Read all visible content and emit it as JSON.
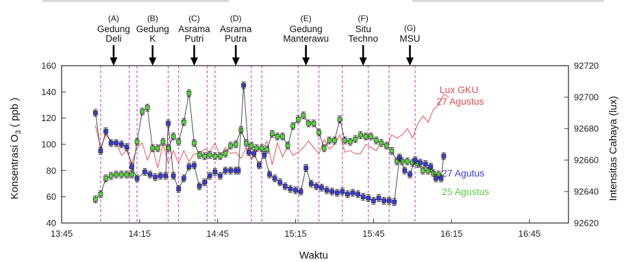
{
  "chart_data": {
    "type": "line",
    "title": "",
    "xlabel": "Waktu",
    "ylabel_left_main": "Konsentrasi O",
    "ylabel_left_sub": "3",
    "ylabel_left_unit": " ( ppb )",
    "ylabel_right": "Intensitas Cahaya (lux)",
    "x_tick_labels": [
      "13:45",
      "14:15",
      "14:45",
      "15:15",
      "15:45",
      "16:15",
      "16:45"
    ],
    "xlim_minutes": [
      0,
      195
    ],
    "x_tick_minutes": [
      0,
      30,
      60,
      90,
      120,
      150,
      180
    ],
    "ylim_left": [
      40,
      160
    ],
    "y_ticks_left": [
      40,
      60,
      80,
      100,
      120,
      140,
      160
    ],
    "ylim_right": [
      92620,
      92720
    ],
    "y_ticks_right": [
      92620,
      92640,
      92660,
      92680,
      92700,
      92720
    ],
    "grid": false,
    "locations": [
      {
        "letter": "(A)",
        "lines": [
          "Gedung",
          "Deli"
        ],
        "minute": 20
      },
      {
        "letter": "(B)",
        "lines": [
          "Gedung",
          "K"
        ],
        "minute": 35
      },
      {
        "letter": "(C)",
        "lines": [
          "Asrama",
          "Putri"
        ],
        "minute": 51
      },
      {
        "letter": "(D)",
        "lines": [
          "Asrama",
          "Putra"
        ],
        "minute": 67
      },
      {
        "letter": "(E)",
        "lines": [
          "Gedung",
          "Manterawu"
        ],
        "minute": 94
      },
      {
        "letter": "(F)",
        "lines": [
          "Situ",
          "Techno"
        ],
        "minute": 116
      },
      {
        "letter": "(G)",
        "lines": [
          "MSU"
        ],
        "minute": 134
      }
    ],
    "segment_boundaries_minutes": [
      15,
      26,
      29,
      41,
      45,
      56,
      59,
      73,
      77,
      91,
      99,
      108,
      118,
      126,
      136
    ],
    "series": [
      {
        "name": "27 Agutus",
        "axis": "left",
        "color": "#3a3ad8",
        "points": [
          [
            13,
            124
          ],
          [
            15,
            95
          ],
          [
            17,
            110
          ],
          [
            19,
            101
          ],
          [
            21,
            101
          ],
          [
            23,
            100
          ],
          [
            25,
            98
          ],
          [
            27,
            83
          ],
          [
            29,
            74
          ],
          [
            32,
            79
          ],
          [
            34,
            77
          ],
          [
            36,
            75
          ],
          [
            38,
            76
          ],
          [
            40,
            76
          ],
          [
            41,
            116
          ],
          [
            43,
            76
          ],
          [
            45,
            66
          ],
          [
            47,
            74
          ],
          [
            49,
            83
          ],
          [
            51,
            84
          ],
          [
            53,
            68
          ],
          [
            55,
            71
          ],
          [
            57,
            76
          ],
          [
            59,
            79
          ],
          [
            61,
            76
          ],
          [
            63,
            80
          ],
          [
            65,
            80
          ],
          [
            67,
            80
          ],
          [
            68,
            80
          ],
          [
            70,
            145
          ],
          [
            72,
            94
          ],
          [
            74,
            93
          ],
          [
            76,
            84
          ],
          [
            78,
            92
          ],
          [
            80,
            77
          ],
          [
            82,
            74
          ],
          [
            84,
            71
          ],
          [
            86,
            68
          ],
          [
            88,
            66
          ],
          [
            90,
            65
          ],
          [
            92,
            64
          ],
          [
            94,
            82
          ],
          [
            96,
            70
          ],
          [
            98,
            68
          ],
          [
            100,
            67
          ],
          [
            102,
            65
          ],
          [
            104,
            64
          ],
          [
            106,
            63
          ],
          [
            108,
            64
          ],
          [
            110,
            62
          ],
          [
            112,
            63
          ],
          [
            114,
            62
          ],
          [
            116,
            60
          ],
          [
            118,
            59
          ],
          [
            120,
            57
          ],
          [
            122,
            59
          ],
          [
            124,
            57
          ],
          [
            126,
            57
          ],
          [
            128,
            56
          ],
          [
            130,
            90
          ],
          [
            132,
            80
          ],
          [
            134,
            77
          ],
          [
            136,
            88
          ],
          [
            138,
            86
          ],
          [
            140,
            85
          ],
          [
            142,
            83
          ],
          [
            144,
            74
          ],
          [
            146,
            74
          ],
          [
            147,
            91
          ]
        ]
      },
      {
        "name": "25 Agustus",
        "axis": "left",
        "color": "#55d23c",
        "points": [
          [
            13,
            58
          ],
          [
            15,
            62
          ],
          [
            17,
            74
          ],
          [
            19,
            76
          ],
          [
            21,
            77
          ],
          [
            23,
            77
          ],
          [
            25,
            77
          ],
          [
            27,
            77
          ],
          [
            29,
            102
          ],
          [
            31,
            125
          ],
          [
            33,
            128
          ],
          [
            35,
            97
          ],
          [
            37,
            97
          ],
          [
            39,
            102
          ],
          [
            41,
            97
          ],
          [
            43,
            106
          ],
          [
            45,
            102
          ],
          [
            47,
            117
          ],
          [
            49,
            139
          ],
          [
            51,
            101
          ],
          [
            53,
            92
          ],
          [
            55,
            91
          ],
          [
            57,
            92
          ],
          [
            59,
            91
          ],
          [
            61,
            91
          ],
          [
            63,
            93
          ],
          [
            65,
            99
          ],
          [
            67,
            100
          ],
          [
            69,
            111
          ],
          [
            71,
            101
          ],
          [
            73,
            99
          ],
          [
            75,
            97
          ],
          [
            77,
            97
          ],
          [
            79,
            96
          ],
          [
            81,
            108
          ],
          [
            83,
            106
          ],
          [
            85,
            106
          ],
          [
            87,
            99
          ],
          [
            89,
            114
          ],
          [
            91,
            119
          ],
          [
            93,
            122
          ],
          [
            95,
            116
          ],
          [
            97,
            116
          ],
          [
            99,
            109
          ],
          [
            101,
            97
          ],
          [
            103,
            103
          ],
          [
            105,
            103
          ],
          [
            107,
            119
          ],
          [
            109,
            103
          ],
          [
            111,
            102
          ],
          [
            113,
            104
          ],
          [
            115,
            107
          ],
          [
            117,
            106
          ],
          [
            119,
            106
          ],
          [
            121,
            103
          ],
          [
            123,
            101
          ],
          [
            125,
            99
          ],
          [
            127,
            95
          ],
          [
            129,
            87
          ],
          [
            131,
            87
          ],
          [
            133,
            87
          ],
          [
            135,
            86
          ],
          [
            137,
            85
          ],
          [
            139,
            80
          ],
          [
            141,
            80
          ],
          [
            143,
            78
          ],
          [
            145,
            77
          ]
        ]
      },
      {
        "name": "Lux GKU 27 Agustus",
        "name_lines": [
          "Lux GKU",
          "27 Agustus"
        ],
        "axis": "right",
        "color": "#e44b4b",
        "points": [
          [
            13,
            92682
          ],
          [
            15,
            92668
          ],
          [
            17,
            92676
          ],
          [
            19,
            92672
          ],
          [
            21,
            92671
          ],
          [
            23,
            92663
          ],
          [
            25,
            92666
          ],
          [
            27,
            92658
          ],
          [
            29,
            92668
          ],
          [
            31,
            92671
          ],
          [
            33,
            92660
          ],
          [
            35,
            92668
          ],
          [
            37,
            92655
          ],
          [
            39,
            92670
          ],
          [
            41,
            92658
          ],
          [
            43,
            92666
          ],
          [
            45,
            92658
          ],
          [
            47,
            92666
          ],
          [
            49,
            92659
          ],
          [
            51,
            92664
          ],
          [
            53,
            92664
          ],
          [
            55,
            92667
          ],
          [
            57,
            92665
          ],
          [
            59,
            92671
          ],
          [
            61,
            92662
          ],
          [
            63,
            92668
          ],
          [
            65,
            92664
          ],
          [
            67,
            92665
          ],
          [
            69,
            92661
          ],
          [
            71,
            92668
          ],
          [
            73,
            92660
          ],
          [
            75,
            92667
          ],
          [
            77,
            92666
          ],
          [
            79,
            92672
          ],
          [
            81,
            92657
          ],
          [
            83,
            92671
          ],
          [
            85,
            92662
          ],
          [
            87,
            92669
          ],
          [
            89,
            92663
          ],
          [
            91,
            92665
          ],
          [
            93,
            92668
          ],
          [
            95,
            92672
          ],
          [
            97,
            92668
          ],
          [
            99,
            92664
          ],
          [
            101,
            92673
          ],
          [
            103,
            92667
          ],
          [
            105,
            92670
          ],
          [
            107,
            92676
          ],
          [
            109,
            92665
          ],
          [
            111,
            92666
          ],
          [
            113,
            92664
          ],
          [
            115,
            92664
          ],
          [
            117,
            92670
          ],
          [
            119,
            92668
          ],
          [
            121,
            92666
          ],
          [
            123,
            92672
          ],
          [
            125,
            92668
          ],
          [
            127,
            92676
          ],
          [
            129,
            92674
          ],
          [
            131,
            92676
          ],
          [
            133,
            92680
          ],
          [
            135,
            92674
          ],
          [
            137,
            92683
          ],
          [
            139,
            92688
          ],
          [
            141,
            92684
          ],
          [
            143,
            92692
          ],
          [
            145,
            92695
          ],
          [
            147,
            92702
          ],
          [
            149,
            92700
          ]
        ]
      }
    ]
  }
}
